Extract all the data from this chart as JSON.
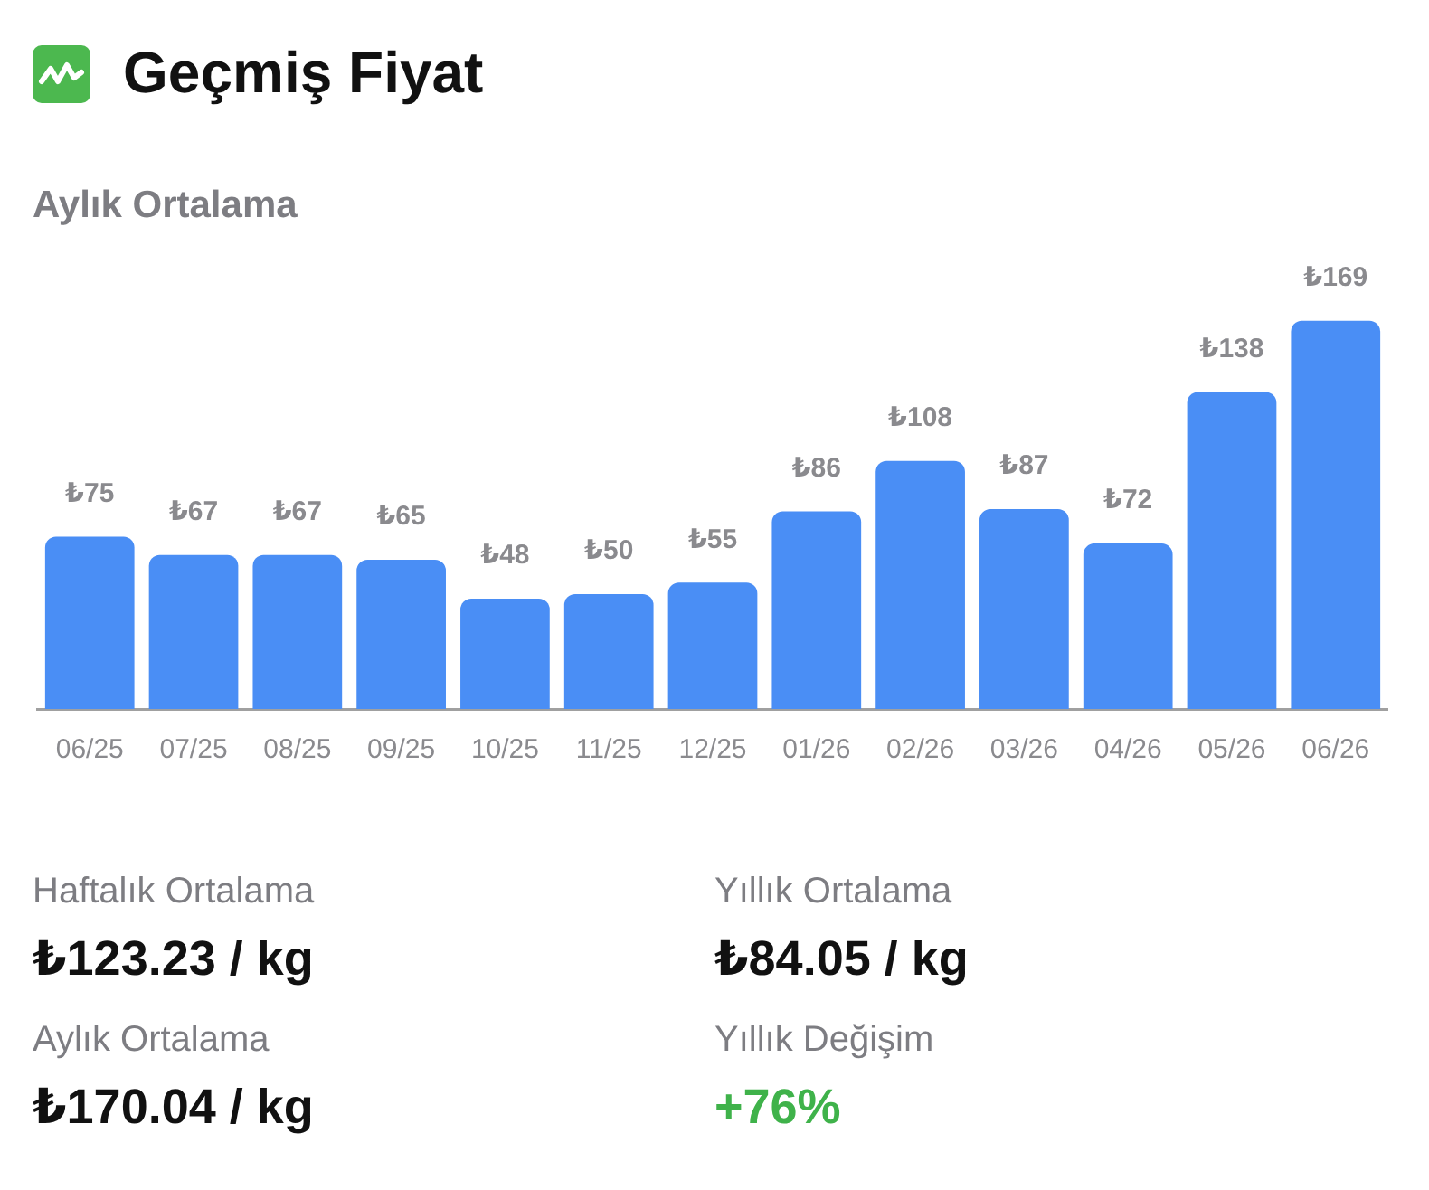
{
  "chart_data": {
    "type": "bar",
    "title": "Geçmiş Fiyat",
    "subtitle": "Aylık Ortalama",
    "categories": [
      "06/25",
      "07/25",
      "08/25",
      "09/25",
      "10/25",
      "11/25",
      "12/25",
      "01/26",
      "02/26",
      "03/26",
      "04/26",
      "05/26",
      "06/26"
    ],
    "values": [
      75,
      67,
      67,
      65,
      48,
      50,
      55,
      86,
      108,
      87,
      72,
      138,
      169
    ],
    "value_labels": [
      "₺75",
      "₺67",
      "₺67",
      "₺65",
      "₺48",
      "₺50",
      "₺55",
      "₺86",
      "₺108",
      "₺87",
      "₺72",
      "₺138",
      "₺169"
    ],
    "color": "#4a8ef5",
    "grid": false,
    "legend": false,
    "tick_labels": "x",
    "annotations": [
      "Haftalık Ortalama",
      "₺123.23 / kg",
      "Yıllık Ortalama",
      "₺84.05 / kg",
      "Aylık Ortalama",
      "₺170.04 / kg",
      "Yıllık Değişim",
      "+76%"
    ]
  }
}
